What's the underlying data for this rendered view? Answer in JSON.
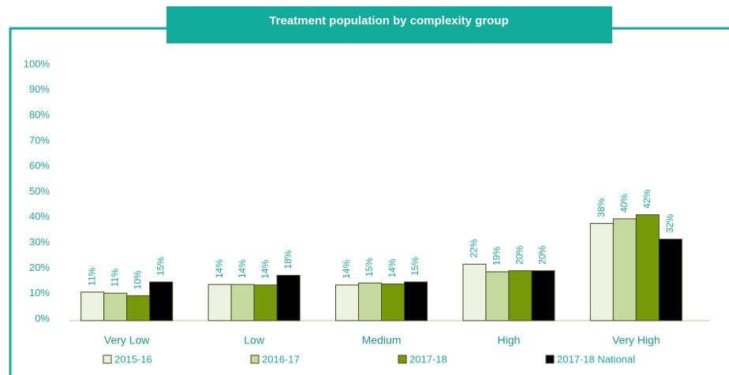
{
  "chart_data": {
    "type": "bar",
    "title": "Treatment population by complexity group",
    "categories": [
      "Very Low",
      "Low",
      "Medium",
      "High",
      "Very High"
    ],
    "series": [
      {
        "name": "2015-16",
        "color": "#eef2e1",
        "values": [
          11.2,
          14.2,
          14.0,
          22.2,
          38.2
        ],
        "value_labels": [
          "11%",
          "14%",
          "14%",
          "22%",
          "38%"
        ]
      },
      {
        "name": "2016-17",
        "color": "#c5d89e",
        "values": [
          10.8,
          14.2,
          14.8,
          19.2,
          40.0
        ],
        "value_labels": [
          "11%",
          "14%",
          "15%",
          "19%",
          "40%"
        ]
      },
      {
        "name": "2017-18",
        "color": "#789a0a",
        "values": [
          9.8,
          14.0,
          14.4,
          19.6,
          41.6
        ],
        "value_labels": [
          "10%",
          "14%",
          "14%",
          "20%",
          "42%"
        ]
      },
      {
        "name": "2017-18 National",
        "color": "#000000",
        "values": [
          15.2,
          17.8,
          15.2,
          19.6,
          32.0
        ],
        "value_labels": [
          "15%",
          "18%",
          "15%",
          "20%",
          "32%"
        ]
      }
    ],
    "ylim": [
      0,
      100
    ],
    "yticks": [
      {
        "value": 0,
        "label": "0%"
      },
      {
        "value": 10,
        "label": "10%"
      },
      {
        "value": 20,
        "label": "20%"
      },
      {
        "value": 30,
        "label": "30%"
      },
      {
        "value": 40,
        "label": "40%"
      },
      {
        "value": 50,
        "label": "50%"
      },
      {
        "value": 60,
        "label": "60%"
      },
      {
        "value": 70,
        "label": "70%"
      },
      {
        "value": 80,
        "label": "80%"
      },
      {
        "value": 90,
        "label": "90%"
      },
      {
        "value": 100,
        "label": "100%"
      }
    ],
    "legend": "bottom"
  }
}
